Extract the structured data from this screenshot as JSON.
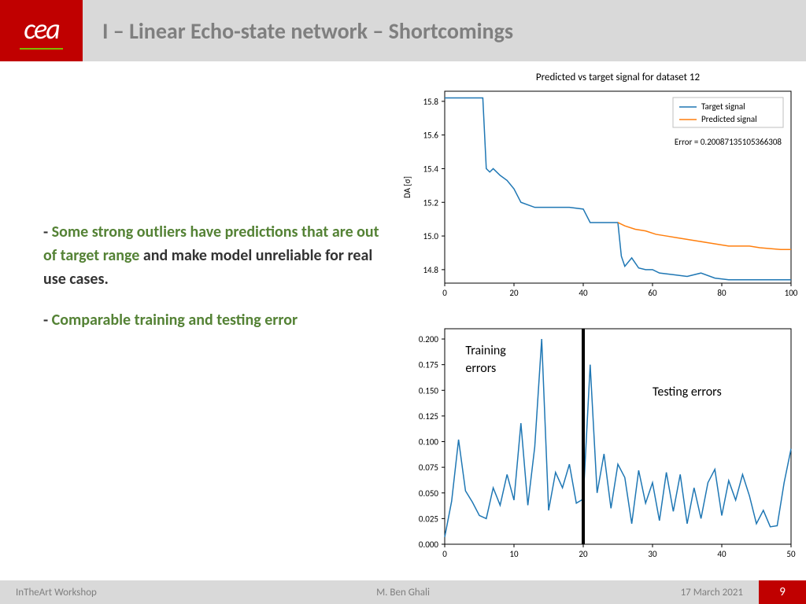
{
  "header": {
    "logo": "cea",
    "title": "I – Linear Echo-state network – Shortcomings"
  },
  "body": {
    "bullet1_green": "Some strong outliers have predictions that are out of target range",
    "bullet1_rest": " and make model unreliable for real use cases.",
    "bullet2_green": "Comparable training and testing error"
  },
  "chart1": {
    "title": "Predicted vs target signal for dataset 12",
    "ylabel": "DA [σ]",
    "xlim": [
      0,
      100
    ],
    "ylim": [
      14.72,
      15.86
    ],
    "xticks": [
      0,
      20,
      40,
      60,
      80,
      100
    ],
    "yticks": [
      14.8,
      15.0,
      15.2,
      15.4,
      15.6,
      15.8
    ],
    "legend": [
      "Target signal",
      "Predicted signal"
    ],
    "error_text": "Error = 0.20087135105366308",
    "colors": {
      "target": "#1f77b4",
      "predicted": "#ff7f0e",
      "axis": "#000000",
      "title": "#000000"
    },
    "target_data": [
      [
        0,
        15.82
      ],
      [
        3,
        15.82
      ],
      [
        6,
        15.82
      ],
      [
        9,
        15.82
      ],
      [
        11,
        15.82
      ],
      [
        12,
        15.4
      ],
      [
        13,
        15.38
      ],
      [
        14,
        15.4
      ],
      [
        16,
        15.36
      ],
      [
        18,
        15.33
      ],
      [
        20,
        15.28
      ],
      [
        22,
        15.2
      ],
      [
        26,
        15.17
      ],
      [
        28,
        15.17
      ],
      [
        32,
        15.17
      ],
      [
        36,
        15.17
      ],
      [
        40,
        15.16
      ],
      [
        42,
        15.08
      ],
      [
        44,
        15.08
      ],
      [
        46,
        15.08
      ],
      [
        48,
        15.08
      ],
      [
        50,
        15.08
      ],
      [
        51,
        14.88
      ],
      [
        52,
        14.82
      ],
      [
        54,
        14.87
      ],
      [
        56,
        14.81
      ],
      [
        58,
        14.8
      ],
      [
        60,
        14.8
      ],
      [
        62,
        14.78
      ],
      [
        66,
        14.77
      ],
      [
        70,
        14.76
      ],
      [
        74,
        14.78
      ],
      [
        78,
        14.75
      ],
      [
        82,
        14.74
      ],
      [
        86,
        14.74
      ],
      [
        90,
        14.74
      ],
      [
        94,
        14.74
      ],
      [
        98,
        14.74
      ],
      [
        100,
        14.74
      ]
    ],
    "predicted_data": [
      [
        50,
        15.08
      ],
      [
        52,
        15.06
      ],
      [
        55,
        15.04
      ],
      [
        58,
        15.03
      ],
      [
        61,
        15.01
      ],
      [
        64,
        15.0
      ],
      [
        67,
        14.99
      ],
      [
        70,
        14.98
      ],
      [
        73,
        14.97
      ],
      [
        76,
        14.96
      ],
      [
        79,
        14.95
      ],
      [
        82,
        14.94
      ],
      [
        85,
        14.94
      ],
      [
        88,
        14.94
      ],
      [
        91,
        14.93
      ],
      [
        94,
        14.925
      ],
      [
        97,
        14.92
      ],
      [
        100,
        14.92
      ]
    ]
  },
  "chart2": {
    "xlim": [
      0,
      50
    ],
    "ylim": [
      0,
      0.21
    ],
    "xticks": [
      0,
      10,
      20,
      30,
      40,
      50
    ],
    "yticks": [
      0.0,
      0.025,
      0.05,
      0.075,
      0.1,
      0.125,
      0.15,
      0.175,
      0.2
    ],
    "divider_x": 20,
    "label_left": "Training errors",
    "label_right": "Testing errors",
    "colors": {
      "line": "#1f77b4",
      "divider": "#000000"
    },
    "data": [
      [
        0,
        0.007
      ],
      [
        1,
        0.042
      ],
      [
        2,
        0.102
      ],
      [
        3,
        0.052
      ],
      [
        4,
        0.041
      ],
      [
        5,
        0.028
      ],
      [
        6,
        0.025
      ],
      [
        7,
        0.055
      ],
      [
        8,
        0.038
      ],
      [
        9,
        0.068
      ],
      [
        10,
        0.043
      ],
      [
        11,
        0.118
      ],
      [
        12,
        0.038
      ],
      [
        13,
        0.095
      ],
      [
        14,
        0.2
      ],
      [
        15,
        0.033
      ],
      [
        16,
        0.07
      ],
      [
        17,
        0.055
      ],
      [
        18,
        0.078
      ],
      [
        19,
        0.04
      ],
      [
        20,
        0.044
      ],
      [
        21,
        0.175
      ],
      [
        22,
        0.05
      ],
      [
        23,
        0.088
      ],
      [
        24,
        0.035
      ],
      [
        25,
        0.078
      ],
      [
        26,
        0.065
      ],
      [
        27,
        0.02
      ],
      [
        28,
        0.072
      ],
      [
        29,
        0.04
      ],
      [
        30,
        0.06
      ],
      [
        31,
        0.023
      ],
      [
        32,
        0.07
      ],
      [
        33,
        0.032
      ],
      [
        34,
        0.068
      ],
      [
        35,
        0.02
      ],
      [
        36,
        0.055
      ],
      [
        37,
        0.025
      ],
      [
        38,
        0.06
      ],
      [
        39,
        0.073
      ],
      [
        40,
        0.028
      ],
      [
        41,
        0.062
      ],
      [
        42,
        0.043
      ],
      [
        43,
        0.068
      ],
      [
        44,
        0.047
      ],
      [
        45,
        0.02
      ],
      [
        46,
        0.033
      ],
      [
        47,
        0.017
      ],
      [
        48,
        0.018
      ],
      [
        49,
        0.06
      ],
      [
        50,
        0.093
      ]
    ]
  },
  "footer": {
    "left": "InTheArt Workshop",
    "center": "M. Ben Ghali",
    "date": "17 March 2021",
    "page": "9"
  }
}
